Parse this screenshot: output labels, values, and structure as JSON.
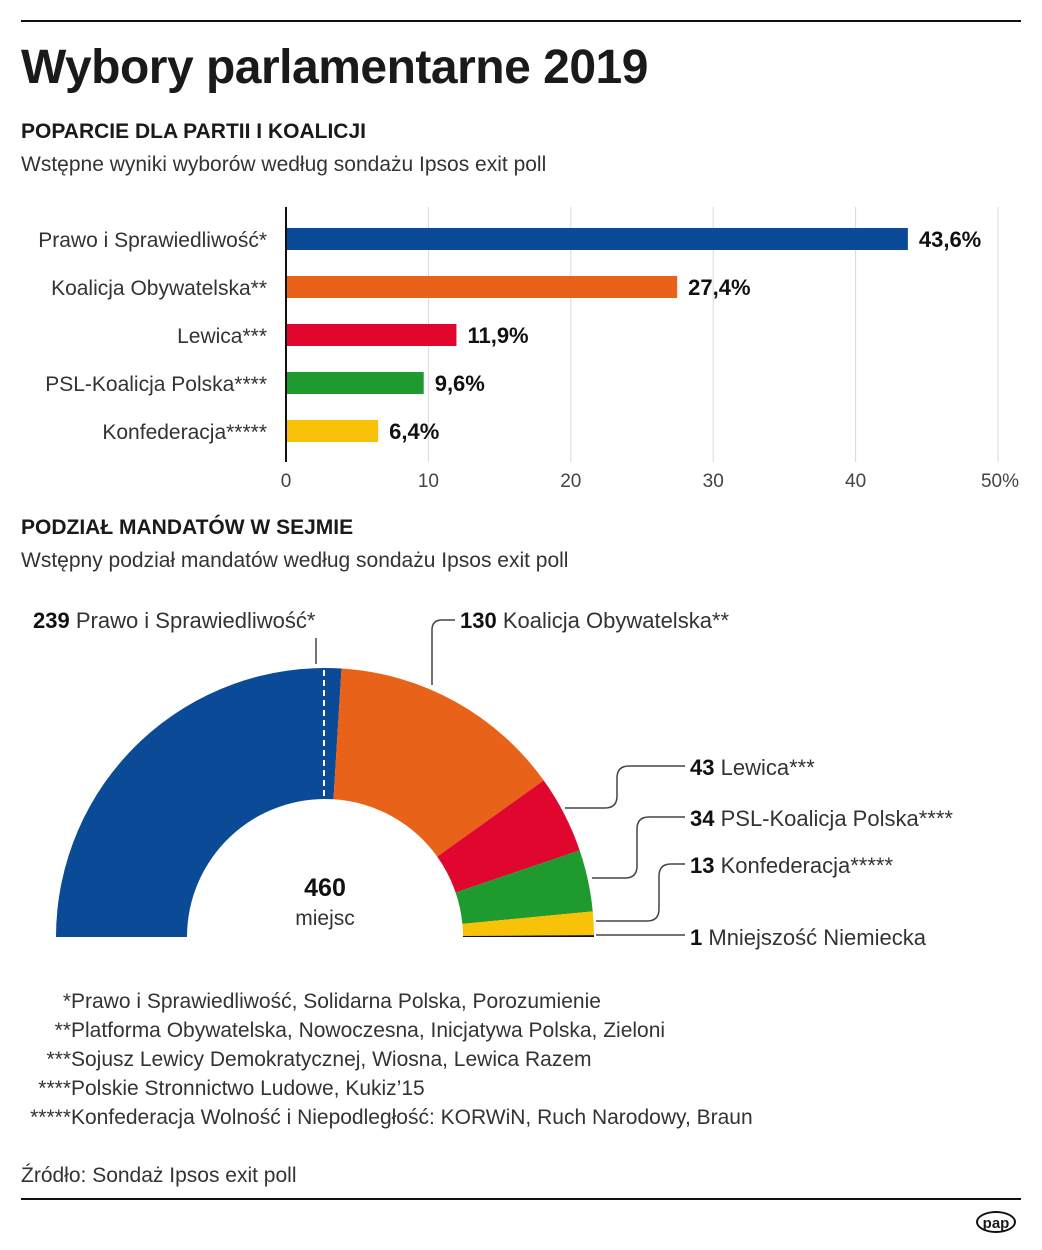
{
  "title": "Wybory parlamentarne 2019",
  "section1": {
    "heading": "POPARCIE DLA PARTII I KOALICJI",
    "subtitle": "Wstępne wyniki wyborów według sondażu Ipsos exit poll"
  },
  "section2": {
    "heading": "PODZIAŁ MANDATÓW W SEJMIE",
    "subtitle": "Wstępny podział mandatów według sondażu Ipsos exit poll"
  },
  "chart_data": [
    {
      "type": "bar",
      "orientation": "horizontal",
      "categories": [
        "Prawo i Sprawiedliwość*",
        "Koalicja Obywatelska**",
        "Lewica***",
        "PSL-Koalicja Polska****",
        "Konfederacja*****"
      ],
      "values": [
        43.6,
        27.4,
        11.9,
        9.6,
        6.4
      ],
      "data_labels": [
        "43,6%",
        "27,4%",
        "11,9%",
        "9,6%",
        "6,4%"
      ],
      "colors": [
        "#0b4a96",
        "#e8621a",
        "#e0062d",
        "#1e9a2f",
        "#f7c207"
      ],
      "xlim": [
        0,
        50
      ],
      "xticks": [
        "0",
        "10",
        "20",
        "30",
        "40",
        "50%"
      ],
      "grid": true
    },
    {
      "type": "pie",
      "variant": "semicircle-donut",
      "center_value": "460",
      "center_label": "miejsc",
      "slices": [
        {
          "label": "Prawo i Sprawiedliwość*",
          "value": 239,
          "color": "#0b4a96"
        },
        {
          "label": "Koalicja Obywatelska**",
          "value": 130,
          "color": "#e8621a"
        },
        {
          "label": "Lewica***",
          "value": 43,
          "color": "#e0062d"
        },
        {
          "label": "PSL-Koalicja Polska****",
          "value": 34,
          "color": "#1e9a2f"
        },
        {
          "label": "Konfederacja*****",
          "value": 13,
          "color": "#f7c207"
        },
        {
          "label": "Mniejszość Niemiecka",
          "value": 1,
          "color": "#111111"
        }
      ],
      "majority_marker": "dashed"
    }
  ],
  "footnotes": [
    {
      "stars": "*",
      "text": "Prawo i Sprawiedliwość, Solidarna Polska, Porozumienie"
    },
    {
      "stars": "**",
      "text": "Platforma Obywatelska, Nowoczesna, Inicjatywa Polska, Zieloni"
    },
    {
      "stars": "***",
      "text": "Sojusz Lewicy Demokratycznej, Wiosna, Lewica Razem"
    },
    {
      "stars": "****",
      "text": "Polskie Stronnictwo Ludowe, Kukiz’15"
    },
    {
      "stars": "*****",
      "text": "Konfederacja Wolność i Niepodległość: KORWiN, Ruch Narodowy, Braun"
    }
  ],
  "source": "Źródło: Sondaż Ipsos exit poll",
  "logo": "pap"
}
